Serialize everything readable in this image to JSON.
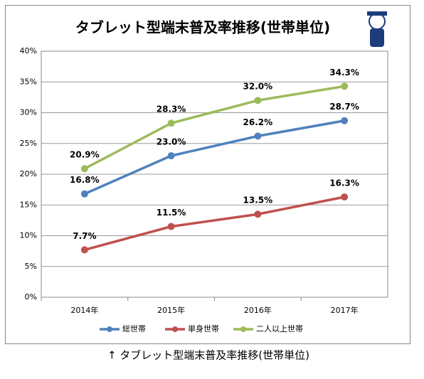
{
  "chart_data": {
    "type": "line",
    "title": "タブレット型端末普及率推移(世帯単位)",
    "categories": [
      "2014年",
      "2015年",
      "2016年",
      "2017年"
    ],
    "series": [
      {
        "name": "総世帯",
        "color": "#4f81bd",
        "values": [
          16.8,
          23.0,
          26.2,
          28.7
        ],
        "value_labels": [
          "16.8%",
          "23.0%",
          "26.2%",
          "28.7%"
        ]
      },
      {
        "name": "単身世帯",
        "color": "#c0504d",
        "values": [
          7.7,
          11.5,
          13.5,
          16.3
        ],
        "value_labels": [
          "7.7%",
          "11.5%",
          "13.5%",
          "16.3%"
        ]
      },
      {
        "name": "二人以上世帯",
        "color": "#9bbb59",
        "values": [
          20.9,
          28.3,
          32.0,
          34.3
        ],
        "value_labels": [
          "20.9%",
          "28.3%",
          "32.0%",
          "34.3%"
        ]
      }
    ],
    "ylim": [
      0,
      40
    ],
    "yticks": [
      {
        "value": 0,
        "label": "0%"
      },
      {
        "value": 5,
        "label": "5%"
      },
      {
        "value": 10,
        "label": "10%"
      },
      {
        "value": 15,
        "label": "15%"
      },
      {
        "value": 20,
        "label": "20%"
      },
      {
        "value": 25,
        "label": "25%"
      },
      {
        "value": 30,
        "label": "30%"
      },
      {
        "value": 35,
        "label": "35%"
      },
      {
        "value": 40,
        "label": "40%"
      }
    ],
    "grid": true,
    "legend": "bottom"
  },
  "caption": "↑ タブレット型端末普及率推移(世帯単位)"
}
